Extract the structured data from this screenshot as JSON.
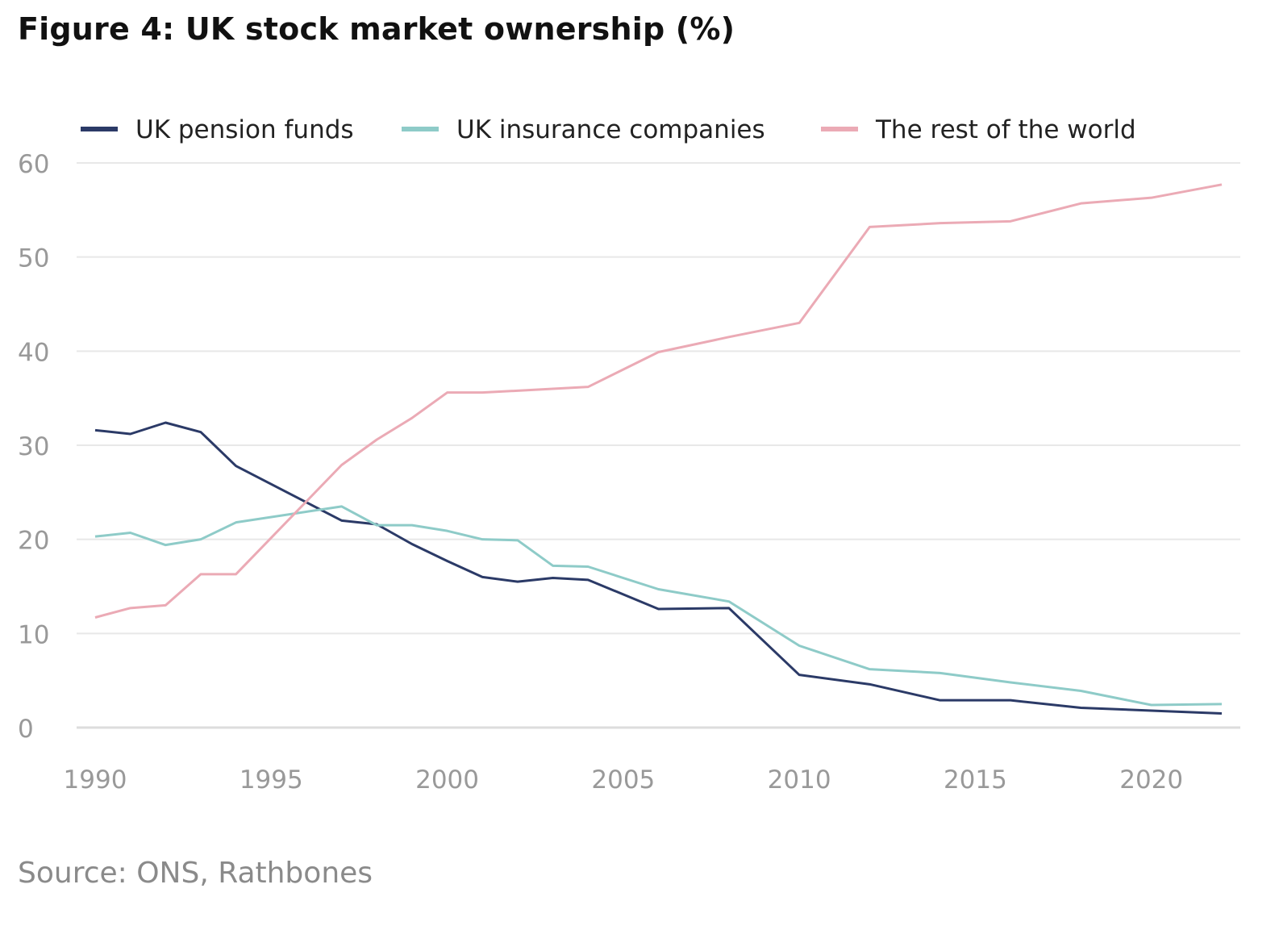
{
  "chart_data": {
    "type": "line",
    "title": "Figure 4: UK stock market ownership (%)",
    "source": "Source: ONS, Rathbones",
    "xlabel": "",
    "ylabel": "",
    "xlim": [
      1990,
      2022
    ],
    "ylim": [
      0,
      60
    ],
    "xticks": [
      1990,
      1995,
      2000,
      2005,
      2010,
      2015,
      2020
    ],
    "yticks": [
      0,
      10,
      20,
      30,
      40,
      50,
      60
    ],
    "grid": "horizontal",
    "legend": "top",
    "x": [
      1990,
      1991,
      1992,
      1993,
      1994,
      1997,
      1998,
      1999,
      2000,
      2001,
      2002,
      2003,
      2004,
      2006,
      2008,
      2010,
      2012,
      2014,
      2016,
      2018,
      2020,
      2022
    ],
    "series": [
      {
        "name": "UK pension funds",
        "color": "#2b3a67",
        "values": [
          31.6,
          31.2,
          32.4,
          31.4,
          27.8,
          22.0,
          21.6,
          19.5,
          17.7,
          16.0,
          15.5,
          15.9,
          15.7,
          12.6,
          12.7,
          5.6,
          4.6,
          2.9,
          2.9,
          2.1,
          1.8,
          1.5
        ]
      },
      {
        "name": "UK insurance companies",
        "color": "#8ecbc8",
        "values": [
          20.3,
          20.7,
          19.4,
          20.0,
          21.8,
          23.5,
          21.5,
          21.5,
          20.9,
          20.0,
          19.9,
          17.2,
          17.1,
          14.7,
          13.4,
          8.7,
          6.2,
          5.8,
          4.8,
          3.9,
          2.4,
          2.5
        ]
      },
      {
        "name": "The rest of the world",
        "color": "#ebaab5",
        "values": [
          11.7,
          12.7,
          13.0,
          16.3,
          16.3,
          27.9,
          30.6,
          32.9,
          35.6,
          35.6,
          35.8,
          36.0,
          36.2,
          39.9,
          41.5,
          43.0,
          53.2,
          53.6,
          53.8,
          55.7,
          56.3,
          57.7
        ]
      }
    ]
  }
}
